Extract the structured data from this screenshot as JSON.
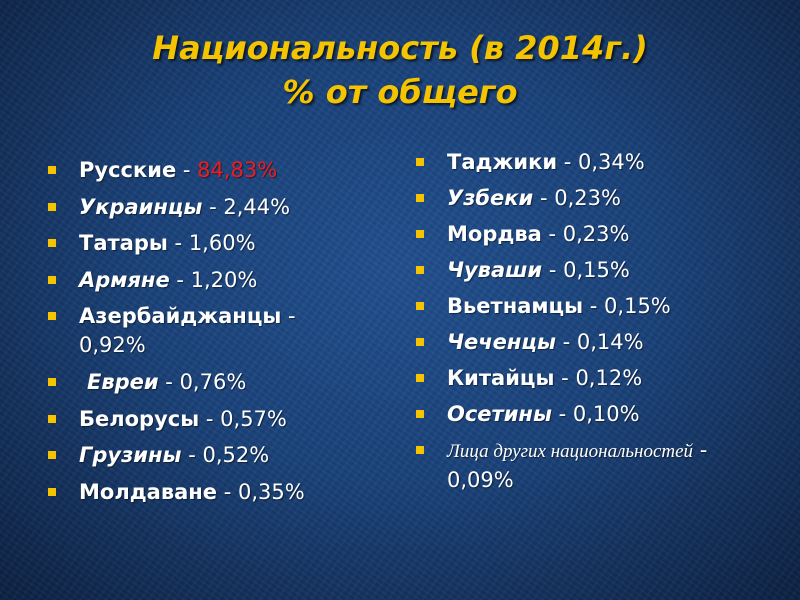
{
  "slide": {
    "title_line1": "Национальность (в 2014г.)",
    "title_line2": "% от общего",
    "colors": {
      "title": "#f4c400",
      "bullet": "#f4c400",
      "highlight": "#ee1c1c",
      "text": "#ffffff",
      "background": "#1a427a"
    }
  },
  "left_items": [
    {
      "name": "Русские",
      "sep": " - ",
      "value": "84,83%"
    },
    {
      "name": "Украинцы",
      "sep": " - ",
      "value": "2,44%"
    },
    {
      "name": "Татары",
      "sep": " - ",
      "value": "1,60%"
    },
    {
      "name": "Армяне",
      "sep": " - ",
      "value": "1,20%"
    },
    {
      "name": "Азербайджанцы",
      "sep": " - ",
      "value": "0,92%"
    },
    {
      "name": "Евреи",
      "sep": " - ",
      "value": "0,76%"
    },
    {
      "name": "Белорусы",
      "sep": " - ",
      "value": "0,57%"
    },
    {
      "name": "Грузины",
      "sep": " - ",
      "value": "0,52%"
    },
    {
      "name": "Молдаване",
      "sep": " - ",
      "value": "0,35%"
    }
  ],
  "right_items": [
    {
      "name": "Таджики",
      "sep": " - ",
      "value": "0,34%"
    },
    {
      "name": "Узбеки",
      "sep": " - ",
      "value": "0,23%"
    },
    {
      "name": "Мордва",
      "sep": " - ",
      "value": "0,23%"
    },
    {
      "name": "Чуваши",
      "sep": " - ",
      "value": "0,15%"
    },
    {
      "name": "Вьетнамцы",
      "sep": " - ",
      "value": "0,15%"
    },
    {
      "name": "Чеченцы",
      "sep": " - ",
      "value": "0,14%"
    },
    {
      "name": "Китайцы",
      "sep": " - ",
      "value": "0,12%"
    },
    {
      "name": "Осетины",
      "sep": " - ",
      "value": "0,10%"
    },
    {
      "name": "Лица других национальностей",
      "sep": " - ",
      "value": "0,09%"
    }
  ]
}
